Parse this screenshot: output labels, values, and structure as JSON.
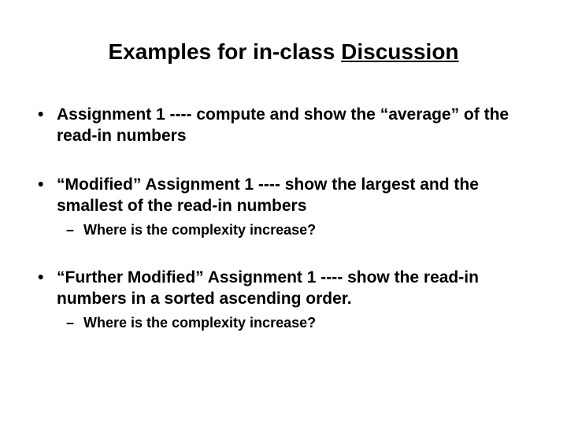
{
  "title": {
    "prefix": "Examples for in-class ",
    "underlined": "Discussion"
  },
  "items": [
    {
      "bold_lead": "Assignment 1 ---- ",
      "rest": "compute and show the “average” of the read-in numbers",
      "sub": []
    },
    {
      "bold_lead": "“Modified” Assignment 1 ---- ",
      "rest": "show the largest and the smallest of the read-in numbers",
      "sub": [
        "Where is the complexity increase?"
      ]
    },
    {
      "bold_lead": "“Further Modified” Assignment 1 ---- ",
      "rest": "show the read-in numbers in a sorted ascending order.",
      "sub": [
        "Where is the complexity increase?"
      ]
    }
  ],
  "style": {
    "background_color": "#ffffff",
    "text_color": "#000000",
    "title_fontsize": 28,
    "body_fontsize": 21,
    "sub_fontsize": 18,
    "font_family": "Arial"
  }
}
